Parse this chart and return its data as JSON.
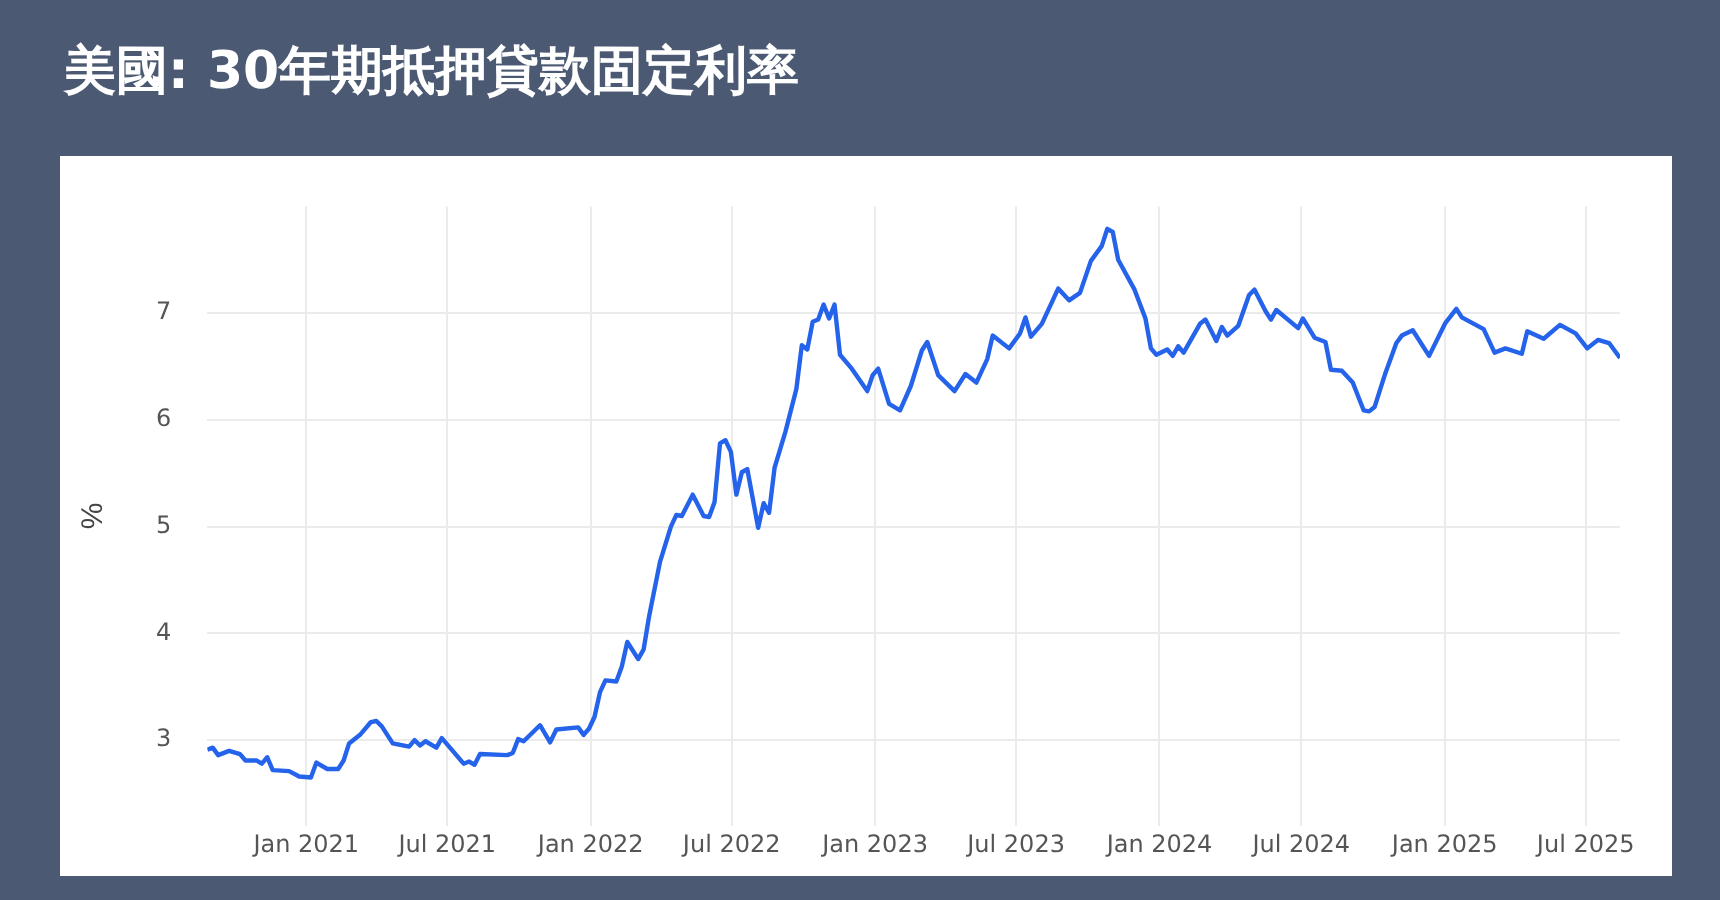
{
  "chart_data": {
    "type": "line",
    "title": "美國: 30年期抵押貸款固定利率",
    "ylabel": "%",
    "grid": true,
    "legend": false,
    "marker": "none",
    "line_style": "solid",
    "xlim": [
      "2020-08-27",
      "2025-08-14"
    ],
    "ylim": [
      2.2,
      8
    ],
    "yticks": [
      3,
      4,
      5,
      6,
      7
    ],
    "xticks": [
      {
        "value": "2021-01-01",
        "label": "Jan 2021"
      },
      {
        "value": "2021-07-01",
        "label": "Jul 2021"
      },
      {
        "value": "2022-01-01",
        "label": "Jan 2022"
      },
      {
        "value": "2022-07-01",
        "label": "Jul 2022"
      },
      {
        "value": "2023-01-01",
        "label": "Jan 2023"
      },
      {
        "value": "2023-07-01",
        "label": "Jul 2023"
      },
      {
        "value": "2024-01-01",
        "label": "Jan 2024"
      },
      {
        "value": "2024-07-01",
        "label": "Jul 2024"
      },
      {
        "value": "2025-01-01",
        "label": "Jan 2025"
      },
      {
        "value": "2025-07-01",
        "label": "Jul 2025"
      }
    ],
    "x": [
      "2020-08-27",
      "2020-09-03",
      "2020-09-10",
      "2020-09-24",
      "2020-10-08",
      "2020-10-15",
      "2020-10-29",
      "2020-11-05",
      "2020-11-12",
      "2020-11-19",
      "2020-12-10",
      "2020-12-23",
      "2021-01-07",
      "2021-01-14",
      "2021-01-28",
      "2021-02-11",
      "2021-02-18",
      "2021-02-25",
      "2021-03-11",
      "2021-03-25",
      "2021-04-01",
      "2021-04-08",
      "2021-04-22",
      "2021-05-13",
      "2021-05-20",
      "2021-05-27",
      "2021-06-03",
      "2021-06-17",
      "2021-06-24",
      "2021-07-08",
      "2021-07-22",
      "2021-07-29",
      "2021-08-05",
      "2021-08-12",
      "2021-09-16",
      "2021-09-23",
      "2021-09-30",
      "2021-10-07",
      "2021-10-28",
      "2021-11-10",
      "2021-11-18",
      "2021-12-16",
      "2021-12-23",
      "2021-12-30",
      "2022-01-06",
      "2022-01-13",
      "2022-01-20",
      "2022-02-03",
      "2022-02-10",
      "2022-02-17",
      "2022-03-03",
      "2022-03-10",
      "2022-03-17",
      "2022-03-31",
      "2022-04-14",
      "2022-04-21",
      "2022-04-28",
      "2022-05-12",
      "2022-05-26",
      "2022-06-02",
      "2022-06-09",
      "2022-06-16",
      "2022-06-23",
      "2022-06-30",
      "2022-07-07",
      "2022-07-14",
      "2022-07-21",
      "2022-08-04",
      "2022-08-11",
      "2022-08-18",
      "2022-08-25",
      "2022-09-08",
      "2022-09-22",
      "2022-09-29",
      "2022-10-06",
      "2022-10-13",
      "2022-10-20",
      "2022-10-27",
      "2022-11-03",
      "2022-11-10",
      "2022-11-17",
      "2022-12-01",
      "2022-12-22",
      "2022-12-29",
      "2023-01-05",
      "2023-01-19",
      "2023-02-02",
      "2023-02-16",
      "2023-03-02",
      "2023-03-09",
      "2023-03-23",
      "2023-04-13",
      "2023-04-27",
      "2023-05-11",
      "2023-05-25",
      "2023-06-01",
      "2023-06-22",
      "2023-07-06",
      "2023-07-13",
      "2023-07-20",
      "2023-08-03",
      "2023-08-24",
      "2023-09-07",
      "2023-09-21",
      "2023-10-05",
      "2023-10-19",
      "2023-10-26",
      "2023-11-02",
      "2023-11-09",
      "2023-11-30",
      "2023-12-14",
      "2023-12-21",
      "2023-12-28",
      "2024-01-11",
      "2024-01-18",
      "2024-01-25",
      "2024-02-01",
      "2024-02-22",
      "2024-02-29",
      "2024-03-14",
      "2024-03-21",
      "2024-03-28",
      "2024-04-11",
      "2024-04-25",
      "2024-05-02",
      "2024-05-16",
      "2024-05-23",
      "2024-05-30",
      "2024-06-27",
      "2024-07-03",
      "2024-07-18",
      "2024-08-01",
      "2024-08-08",
      "2024-08-22",
      "2024-09-05",
      "2024-09-19",
      "2024-09-26",
      "2024-10-03",
      "2024-10-17",
      "2024-10-31",
      "2024-11-07",
      "2024-11-21",
      "2024-12-12",
      "2025-01-02",
      "2025-01-16",
      "2025-01-23",
      "2025-02-20",
      "2025-03-06",
      "2025-03-20",
      "2025-04-10",
      "2025-04-17",
      "2025-05-08",
      "2025-05-29",
      "2025-06-18",
      "2025-07-03",
      "2025-07-17",
      "2025-07-31",
      "2025-08-14"
    ],
    "series": [
      {
        "color": "#2563eb",
        "values": [
          2.91,
          2.93,
          2.86,
          2.9,
          2.87,
          2.81,
          2.81,
          2.78,
          2.84,
          2.72,
          2.71,
          2.66,
          2.65,
          2.79,
          2.73,
          2.73,
          2.81,
          2.97,
          3.05,
          3.17,
          3.18,
          3.13,
          2.97,
          2.94,
          3.0,
          2.95,
          2.99,
          2.93,
          3.02,
          2.9,
          2.78,
          2.8,
          2.77,
          2.87,
          2.86,
          2.88,
          3.01,
          2.99,
          3.14,
          2.98,
          3.1,
          3.12,
          3.05,
          3.11,
          3.22,
          3.45,
          3.56,
          3.55,
          3.69,
          3.92,
          3.76,
          3.85,
          4.16,
          4.67,
          5.0,
          5.11,
          5.1,
          5.3,
          5.1,
          5.09,
          5.23,
          5.78,
          5.81,
          5.7,
          5.3,
          5.51,
          5.54,
          4.99,
          5.22,
          5.13,
          5.55,
          5.89,
          6.29,
          6.7,
          6.66,
          6.92,
          6.94,
          7.08,
          6.95,
          7.08,
          6.61,
          6.49,
          6.27,
          6.42,
          6.48,
          6.15,
          6.09,
          6.32,
          6.65,
          6.73,
          6.42,
          6.27,
          6.43,
          6.35,
          6.57,
          6.79,
          6.67,
          6.81,
          6.96,
          6.78,
          6.9,
          7.23,
          7.12,
          7.19,
          7.49,
          7.63,
          7.79,
          7.76,
          7.5,
          7.22,
          6.95,
          6.67,
          6.61,
          6.66,
          6.6,
          6.69,
          6.63,
          6.9,
          6.94,
          6.74,
          6.87,
          6.79,
          6.88,
          7.17,
          7.22,
          7.02,
          6.94,
          7.03,
          6.86,
          6.95,
          6.77,
          6.73,
          6.47,
          6.46,
          6.35,
          6.09,
          6.08,
          6.12,
          6.44,
          6.72,
          6.79,
          6.84,
          6.6,
          6.91,
          7.04,
          6.96,
          6.85,
          6.63,
          6.67,
          6.62,
          6.83,
          6.76,
          6.89,
          6.81,
          6.67,
          6.75,
          6.72,
          6.58
        ]
      }
    ]
  }
}
